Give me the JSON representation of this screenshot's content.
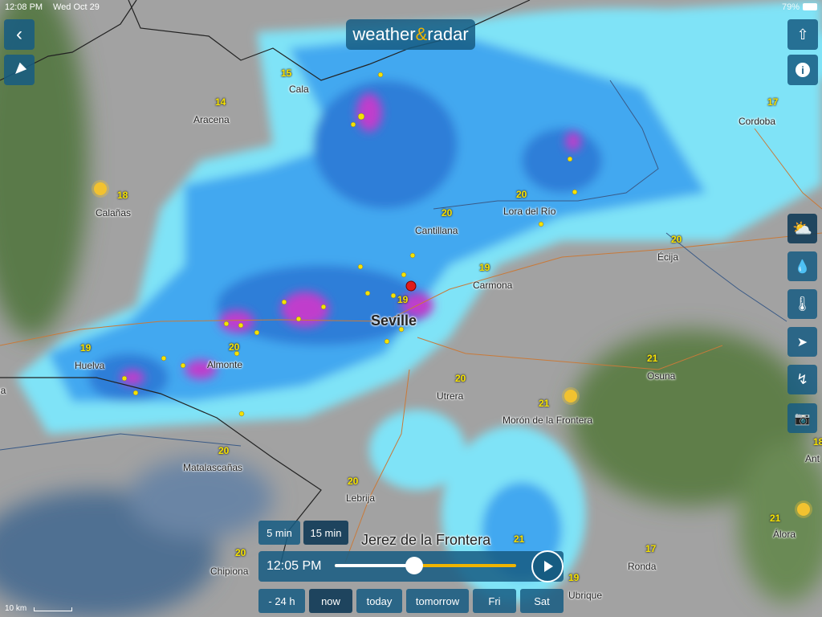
{
  "status_bar": {
    "time": "12:08 PM",
    "date": "Wed Oct 29",
    "battery": "79%"
  },
  "brand": {
    "left": "weather",
    "amp": "&",
    "right": "radar"
  },
  "cities": [
    {
      "name": "Cala",
      "temp": "15"
    },
    {
      "name": "Aracena",
      "temp": "14"
    },
    {
      "name": "Calañas",
      "temp": "18"
    },
    {
      "name": "Cordoba",
      "temp": "17"
    },
    {
      "name": "Lora del Río",
      "temp": "20"
    },
    {
      "name": "Cantillana",
      "temp": "20"
    },
    {
      "name": "Écija",
      "temp": "20"
    },
    {
      "name": "Carmona",
      "temp": "19"
    },
    {
      "name": "Seville",
      "temp": "19"
    },
    {
      "name": "Huelva",
      "temp": "19"
    },
    {
      "name": "Almonte",
      "temp": "20"
    },
    {
      "name": "Osuna",
      "temp": "21"
    },
    {
      "name": "Utrera",
      "temp": "20"
    },
    {
      "name": "Morón de la Frontera",
      "temp": "21"
    },
    {
      "name": "Matalascañas",
      "temp": "20"
    },
    {
      "name": "Lebrija",
      "temp": "20"
    },
    {
      "name": "Chipiona",
      "temp": "20"
    },
    {
      "name": "Álora",
      "temp": "21"
    },
    {
      "name": "Ronda",
      "temp": "17"
    },
    {
      "name": "Ant",
      "temp": "18"
    },
    {
      "name": "Jerez de la Frontera",
      "temp": "21"
    },
    {
      "name": "Ubrique",
      "temp": "19"
    },
    {
      "name": "na",
      "temp": ""
    }
  ],
  "controls": {
    "interval_options": [
      "5 min",
      "15 min"
    ],
    "interval_selected": "15 min",
    "current_time": "12:05 PM",
    "timeline_progress": 0.44,
    "ranges": [
      "- 24 h",
      "now",
      "today",
      "tomorrow",
      "Fri",
      "Sat"
    ],
    "range_selected": "now"
  },
  "scale": "10 km",
  "layers": [
    "weather-icon",
    "rain-icon",
    "thermometer-icon",
    "wind-icon",
    "lightning-icon",
    "camera-icon"
  ],
  "colors": {
    "panel": "#165c82",
    "accent": "#f0b400",
    "radar_light": "#7fe3f7",
    "radar_mid": "#3fa6f0",
    "radar_heavy": "#c03ccc"
  }
}
